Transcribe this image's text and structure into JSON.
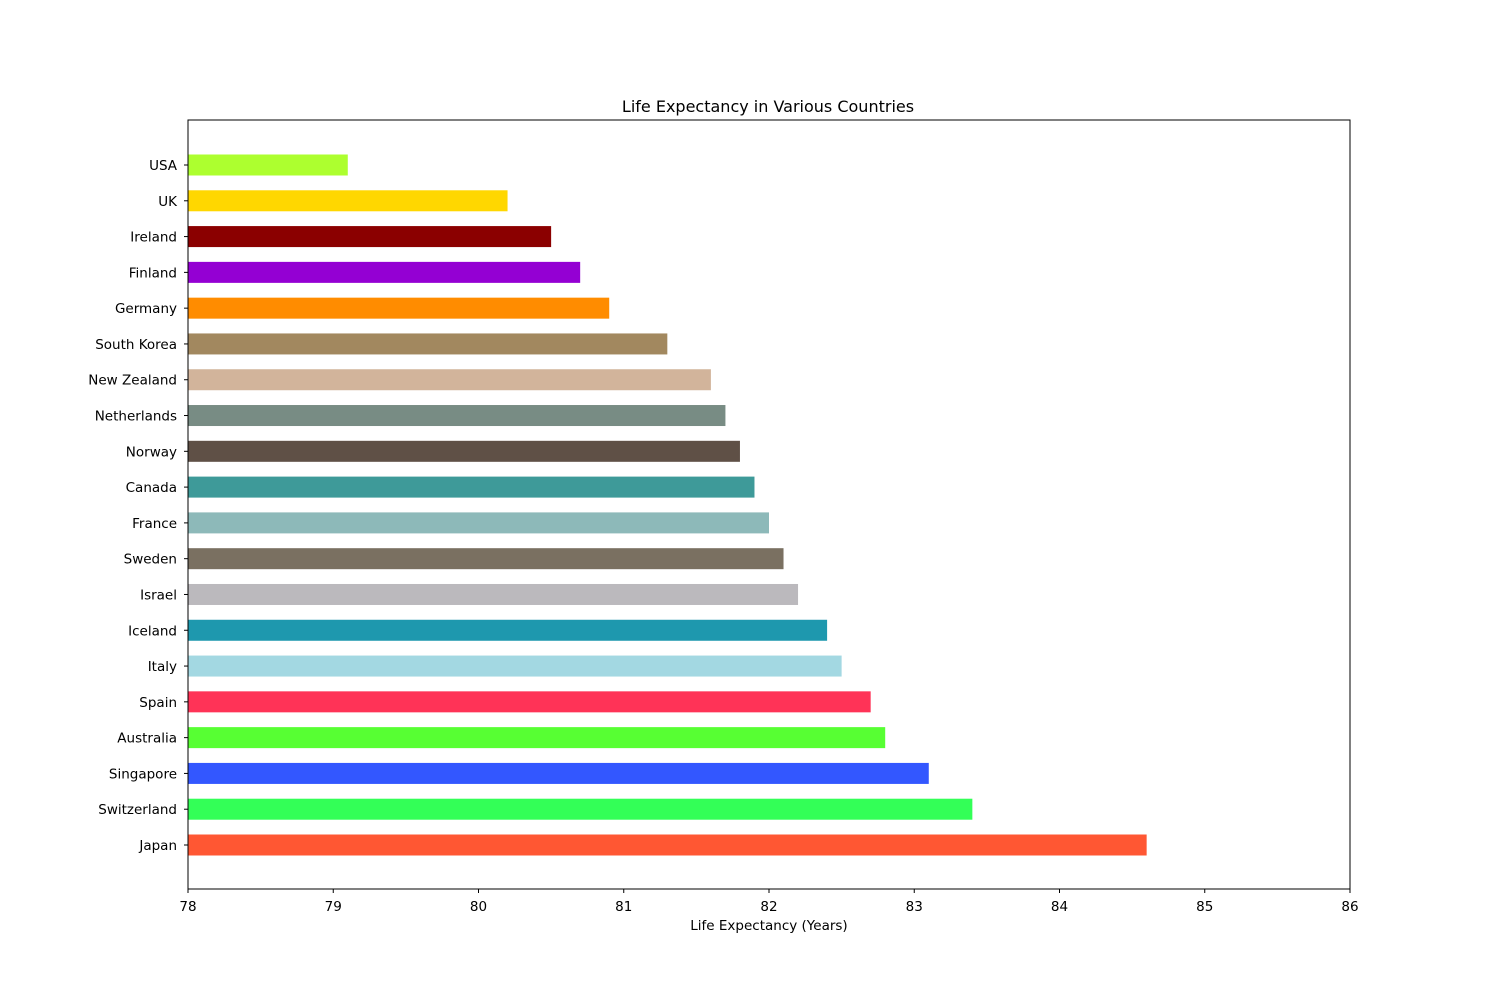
{
  "chart_data": {
    "type": "bar",
    "orientation": "horizontal",
    "title": "Life Expectancy in Various Countries",
    "xlabel": "Life Expectancy (Years)",
    "ylabel": "",
    "xlim": [
      78,
      86
    ],
    "xticks": [
      78,
      79,
      80,
      81,
      82,
      83,
      84,
      85,
      86
    ],
    "grid": false,
    "categories": [
      "Japan",
      "Switzerland",
      "Singapore",
      "Australia",
      "Spain",
      "Italy",
      "Iceland",
      "Israel",
      "Sweden",
      "France",
      "Canada",
      "Norway",
      "Netherlands",
      "New Zealand",
      "South Korea",
      "Germany",
      "Finland",
      "Ireland",
      "UK",
      "USA"
    ],
    "values": [
      84.6,
      83.4,
      83.1,
      82.8,
      82.7,
      82.5,
      82.4,
      82.2,
      82.1,
      82.0,
      81.9,
      81.8,
      81.7,
      81.6,
      81.3,
      80.9,
      80.7,
      80.5,
      80.2,
      79.1
    ],
    "colors": [
      "#ff5733",
      "#33ff57",
      "#3357ff",
      "#57ff33",
      "#ff3357",
      "#a3d8e2",
      "#1e98ae",
      "#bbb9bd",
      "#7a7061",
      "#8db9b9",
      "#3e9a99",
      "#5f5046",
      "#788c84",
      "#d2b49b",
      "#a2885f",
      "#ff8c00",
      "#9400d3",
      "#8b0000",
      "#ffd700",
      "#adff2f"
    ]
  }
}
